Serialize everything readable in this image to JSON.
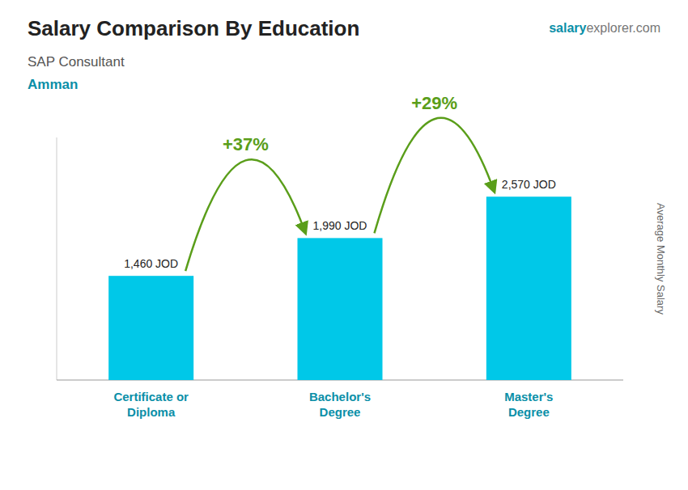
{
  "chart_data": {
    "type": "bar",
    "title": "Salary Comparison By Education",
    "subtitle": "SAP Consultant",
    "y_label": "Average Monthly Salary",
    "annotations": [
      "Amman",
      "salary",
      "explorer.com",
      "+37%",
      "+29%"
    ],
    "categories": [
      "Certificate or\nDiploma",
      "Bachelor's\nDegree",
      "Master's\nDegree"
    ],
    "values": [
      1460,
      1990,
      2570
    ],
    "value_labels": [
      "1,460 JOD",
      "1,990 JOD",
      "2,570 JOD"
    ],
    "data_labels": true,
    "color": "#00c8e8",
    "ylim": [
      0,
      3400
    ],
    "tick_labels": false,
    "grid": false
  }
}
